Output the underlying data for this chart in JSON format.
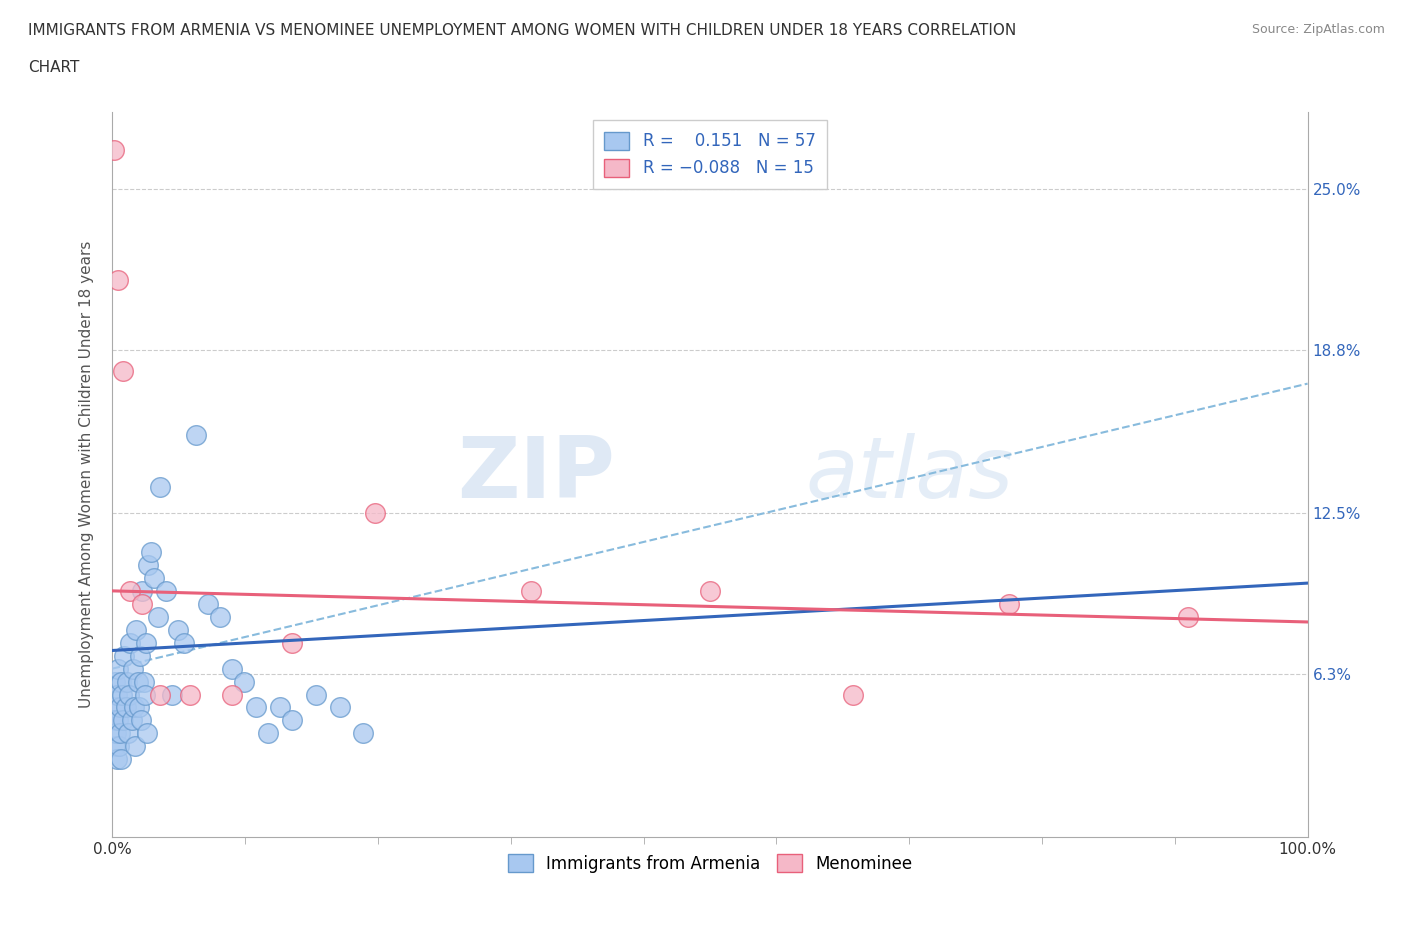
{
  "title_line1": "IMMIGRANTS FROM ARMENIA VS MENOMINEE UNEMPLOYMENT AMONG WOMEN WITH CHILDREN UNDER 18 YEARS CORRELATION",
  "title_line2": "CHART",
  "source": "Source: ZipAtlas.com",
  "ylabel": "Unemployment Among Women with Children Under 18 years",
  "xlim": [
    0.0,
    100.0
  ],
  "ylim": [
    0.0,
    28.0
  ],
  "yticks": [
    0.0,
    6.3,
    12.5,
    18.8,
    25.0
  ],
  "ytick_labels": [
    "",
    "6.3%",
    "12.5%",
    "18.8%",
    "25.0%"
  ],
  "xtick_labels": [
    "0.0%",
    "",
    "",
    "",
    "",
    "",
    "",
    "",
    "",
    "100.0%"
  ],
  "xticks": [
    0,
    11.11,
    22.22,
    33.33,
    44.44,
    55.55,
    66.66,
    77.77,
    88.88,
    100.0
  ],
  "r_armenia": 0.151,
  "n_armenia": 57,
  "r_menominee": -0.088,
  "n_menominee": 15,
  "color_armenia": "#a8c8f0",
  "color_menominee": "#f5b8c8",
  "color_edge_armenia": "#6699cc",
  "color_edge_menominee": "#e8607a",
  "color_trend_armenia": "#3366bb",
  "color_trend_menominee": "#e8607a",
  "color_dashed": "#88bbdd",
  "legend_r_color": "#3366bb",
  "background_color": "#ffffff",
  "watermark_zip": "ZIP",
  "watermark_atlas": "atlas",
  "trend_armenia_x0": 0.0,
  "trend_armenia_y0": 7.2,
  "trend_armenia_x1": 100.0,
  "trend_armenia_y1": 9.8,
  "trend_menominee_x0": 0.0,
  "trend_menominee_y0": 9.5,
  "trend_menominee_x1": 100.0,
  "trend_menominee_y1": 8.3,
  "dashed_x0": 0.0,
  "dashed_y0": 6.5,
  "dashed_x1": 100.0,
  "dashed_y1": 17.5,
  "armenia_x": [
    0.1,
    0.15,
    0.2,
    0.25,
    0.3,
    0.35,
    0.4,
    0.45,
    0.5,
    0.55,
    0.6,
    0.65,
    0.7,
    0.75,
    0.8,
    0.9,
    1.0,
    1.1,
    1.2,
    1.3,
    1.4,
    1.5,
    1.6,
    1.7,
    1.8,
    1.9,
    2.0,
    2.1,
    2.2,
    2.3,
    2.4,
    2.5,
    2.6,
    2.7,
    2.8,
    2.9,
    3.0,
    3.2,
    3.5,
    3.8,
    4.0,
    4.5,
    5.0,
    5.5,
    6.0,
    7.0,
    8.0,
    9.0,
    10.0,
    11.0,
    12.0,
    13.0,
    14.0,
    15.0,
    17.0,
    19.0,
    21.0
  ],
  "armenia_y": [
    5.0,
    4.5,
    6.0,
    3.5,
    4.0,
    5.5,
    3.0,
    4.5,
    6.5,
    3.5,
    5.0,
    4.0,
    6.0,
    3.0,
    5.5,
    4.5,
    7.0,
    5.0,
    6.0,
    4.0,
    5.5,
    7.5,
    4.5,
    6.5,
    5.0,
    3.5,
    8.0,
    6.0,
    5.0,
    7.0,
    4.5,
    9.5,
    6.0,
    5.5,
    7.5,
    4.0,
    10.5,
    11.0,
    10.0,
    8.5,
    13.5,
    9.5,
    5.5,
    8.0,
    7.5,
    15.5,
    9.0,
    8.5,
    6.5,
    6.0,
    5.0,
    4.0,
    5.0,
    4.5,
    5.5,
    5.0,
    4.0
  ],
  "menominee_x": [
    0.15,
    0.5,
    0.9,
    1.5,
    2.5,
    4.0,
    6.5,
    10.0,
    15.0,
    22.0,
    35.0,
    50.0,
    62.0,
    75.0,
    90.0
  ],
  "menominee_y": [
    26.5,
    21.5,
    18.0,
    9.5,
    9.0,
    5.5,
    5.5,
    5.5,
    7.5,
    12.5,
    9.5,
    9.5,
    5.5,
    9.0,
    8.5
  ]
}
